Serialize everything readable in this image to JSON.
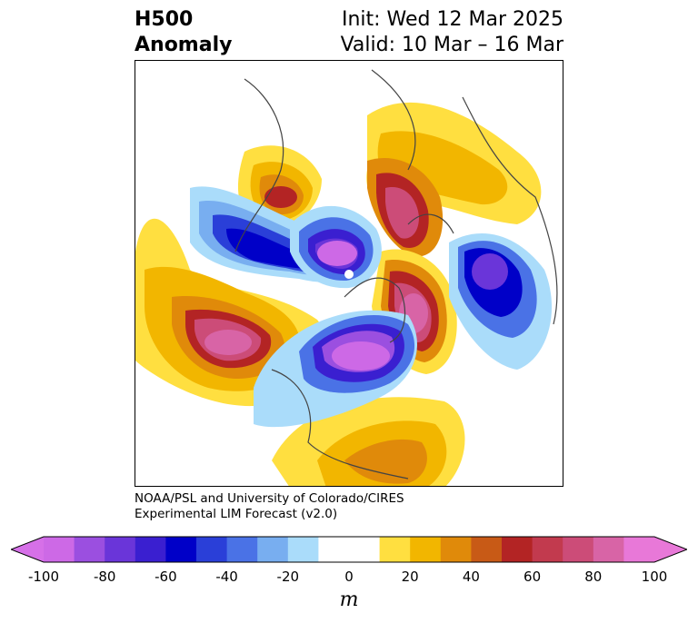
{
  "title": {
    "left_line1": "H500",
    "left_line2": "Anomaly",
    "right_line1": "Init: Wed 12 Mar 2025",
    "right_line2": "Valid: 10 Mar – 16 Mar"
  },
  "credit": {
    "line1": "NOAA/PSL and University of Colorado/CIRES",
    "line2": "Experimental LIM Forecast (v2.0)"
  },
  "colorbar": {
    "unit": "m",
    "ticks": [
      "-100",
      "-80",
      "-60",
      "-40",
      "-20",
      "0",
      "20",
      "40",
      "60",
      "80",
      "100"
    ],
    "colors": [
      "#cd69e6",
      "#9b4fe0",
      "#6a35d9",
      "#3a1fd0",
      "#0000c8",
      "#2a3fd8",
      "#4a72e6",
      "#78aef0",
      "#aadcfa",
      "#ffffff",
      "#ffffff",
      "#ffdf40",
      "#f2b600",
      "#e08a0a",
      "#c85a16",
      "#b32424",
      "#c23a4e",
      "#cc4c78",
      "#d864a6",
      "#e878d8"
    ],
    "low_extend": "#d670e8",
    "high_extend": "#e878d8"
  },
  "colors": {
    "coast": "#444444",
    "background": "#ffffff"
  }
}
